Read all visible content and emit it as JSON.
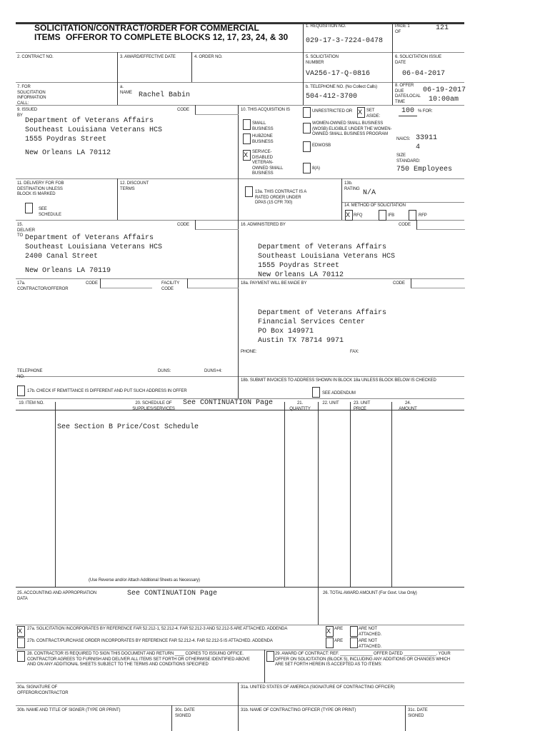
{
  "header": {
    "title_line1": "SOLICITATION/CONTRACT/ORDER FOR COMMERCIAL",
    "title_line2": "ITEMS",
    "offeror_note": "OFFEROR TO COMPLETE BLOCKS 12, 17, 23, 24, & 30",
    "req_label": "1. REQUISITION NO.",
    "req_value": "029-17-3-7224-0478",
    "page_label": "PAGE 1 OF",
    "page_total": "121"
  },
  "row2": {
    "contract_label": "2. CONTRACT NO.",
    "award_label": "3. AWARD/EFFECTIVE DATE",
    "order_label": "4. ORDER NO.",
    "solnum_label": "5. SOLICITATION NUMBER",
    "solnum_value": "VA256-17-Q-0816",
    "issue_label": "6. SOLICITATION ISSUE DATE",
    "issue_value": "06-04-2017"
  },
  "row7": {
    "info_label": "7. FOR SOLICITATION INFORMATION CALL:",
    "name_label": "a. NAME",
    "name_value": "Rachel Babin",
    "phone_label": "b. TELEPHONE NO. (No Collect Calls)",
    "phone_value": "504-412-3700",
    "due_label": "8. OFFER DUE DATE/LOCAL TIME",
    "due_date": "06-19-2017",
    "due_time": "10:00am"
  },
  "issued": {
    "label": "9. ISSUED BY",
    "code_label": "CODE",
    "lines": [
      "Department of Veterans Affairs",
      "Southeast Louisiana Veterans HCS",
      "1555 Poydras Street",
      "New Orleans LA 70112"
    ]
  },
  "acq": {
    "label": "10. THIS ACQUISITION IS",
    "unrestricted": "UNRESTRICTED OR",
    "set_aside": "SET ASIDE:",
    "set_aside_mark": "X",
    "percent": "100",
    "percent_for": "% FOR:",
    "small_business": "SMALL BUSINESS",
    "hubzone": "HUBZONE BUSINESS",
    "sdvosb": "SERVICE-DISABLED VETERAN-OWNED SMALL BUSINESS",
    "sdvosb_mark": "X",
    "wosb": "WOMEN-OWNED SMALL BUSINESS (WOSB) ELIGIBLE UNDER THE WOMEN-OWNED SMALL BUSINESS PROGRAM",
    "edwosb": "EDWOSB",
    "eight_a": "8(A)",
    "naics_label": "NAICS:",
    "naics_value": "339114",
    "size_label": "SIZE STANDARD:",
    "size_value": "750 Employees"
  },
  "row11": {
    "fob_label": "11. DELIVERY FOR FOB DESTINATION UNLESS BLOCK IS MARKED",
    "see_schedule": "SEE SCHEDULE",
    "discount_label": "12. DISCOUNT TERMS",
    "rated_label": "13a. THIS CONTRACT IS A RATED ORDER UNDER DPAS (15 CFR 700)",
    "rating_label": "13b. RATING",
    "rating_value": "N/A",
    "method_label": "14. METHOD OF SOLICITATION",
    "rfq": "RFQ",
    "rfq_mark": "X",
    "ifb": "IFB",
    "rfp": "RFP"
  },
  "deliver": {
    "label": "15. DELIVER TO",
    "code_label": "CODE",
    "lines": [
      "Department of Veterans Affairs",
      "Southeast Louisiana Veterans HCS",
      "2400 Canal Street",
      "New Orleans LA 70119"
    ]
  },
  "admin": {
    "label": "16. ADMINISTERED BY",
    "code_label": "CODE",
    "lines": [
      "Department of Veterans Affairs",
      "Southeast Louisiana Veterans HCS",
      "1555 Poydras Street",
      "New Orleans LA 70112"
    ]
  },
  "contractor": {
    "label": "17a. CONTRACTOR/OFFEROR",
    "code_label": "CODE",
    "facility_label": "FACILITY CODE",
    "telephone_label": "TELEPHONE NO.",
    "duns_label": "DUNS:",
    "duns4_label": "DUNS+4:",
    "remit_label": "17b. CHECK IF REMITTANCE IS DIFFERENT AND PUT SUCH ADDRESS IN OFFER"
  },
  "payment": {
    "label": "18a. PAYMENT WILL BE MADE BY",
    "code_label": "CODE",
    "lines": [
      "Department of Veterans Affairs",
      "Financial Services Center",
      "PO Box 149971",
      "Austin TX 78714 9971"
    ],
    "phone_label": "PHONE:",
    "fax_label": "FAX:",
    "invoice_label": "18b. SUBMIT INVOICES TO ADDRESS SHOWN IN BLOCK 18a UNLESS BLOCK BELOW IS CHECKED",
    "see_addendum": "SEE ADDENDUM"
  },
  "schedule": {
    "columns": [
      "19. ITEM NO.",
      "20. SCHEDULE OF SUPPLIES/SERVICES",
      "21. QUANTITY",
      "22. UNIT",
      "23. UNIT PRICE",
      "24. AMOUNT"
    ],
    "continuation": "See CONTINUATION Page",
    "body": "See Section B Price/Cost Schedule",
    "note": "(Use Reverse and/or Attach Additional Sheets as Necessary)"
  },
  "accounting": {
    "label": "25. ACCOUNTING AND APPROPRIATION DATA",
    "value": "See CONTINUATION Page",
    "total_label": "26. TOTAL AWARD AMOUNT (For Govt. Use Only)"
  },
  "clauses": {
    "c27a": "27a. SOLICITATION INCORPORATES BY REFERENCE FAR 52.212-1, 52.212-4. FAR 52.212-3 AND 52.212-5 ARE ATTACHED. ADDENDA",
    "c27a_mark": "X",
    "c27a_are_mark": "X",
    "c27b": "27b. CONTRACT/PURCHASE ORDER INCORPORATES BY REFERENCE FAR 52.212-4. FAR 52.212-5 IS ATTACHED. ADDENDA",
    "are": "ARE",
    "are_not": "ARE NOT ATTACHED.",
    "c28": "28. CONTRACTOR IS REQUIRED TO SIGN THIS DOCUMENT AND RETURN ____ COPIES TO ISSUING OFFICE. CONTRACTOR AGREES TO FURNISH AND DELIVER ALL ITEMS SET FORTH OR OTHERWISE IDENTIFIED ABOVE AND ON ANY ADDITIONAL SHEETS SUBJECT TO THE TERMS AND CONDITIONS SPECIFIED",
    "c29": "29. AWARD OF CONTRACT: REF. ______________ OFFER DATED ______________. YOUR OFFER ON SOLICITATION (BLOCK 5), INCLUDING ANY ADDITIONS OR CHANGES WHICH ARE SET FORTH HEREIN IS ACCEPTED AS TO ITEMS:"
  },
  "signatures": {
    "s30a": "30a. SIGNATURE OF OFFEROR/CONTRACTOR",
    "s31a": "31a. UNITED STATES OF AMERICA (SIGNATURE OF CONTRACTING OFFICER)",
    "s30b": "30b. NAME AND TITLE OF SIGNER (TYPE OR PRINT)",
    "s30c": "30c. DATE SIGNED",
    "s31b": "31b. NAME OF CONTRACTING OFFICER (TYPE OR PRINT)",
    "s31c": "31c. DATE SIGNED"
  }
}
